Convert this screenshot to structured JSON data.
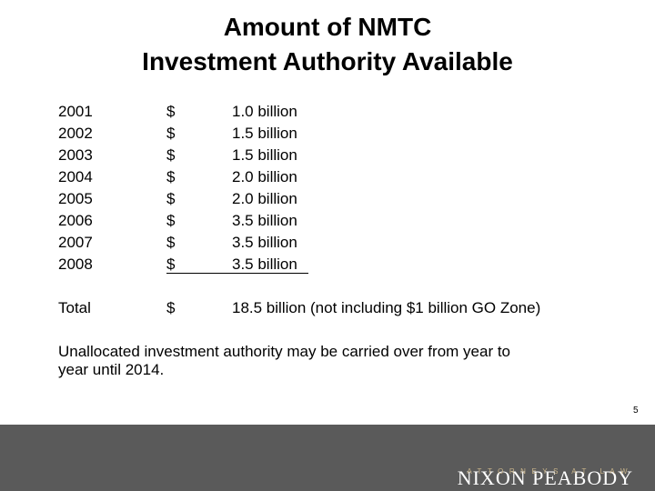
{
  "title": {
    "lines": [
      "Amount of NMTC",
      "Investment Authority Available"
    ]
  },
  "table": {
    "rows": [
      [
        "2001",
        "$",
        "1.0 billion"
      ],
      [
        "2002",
        "$",
        "1.5 billion"
      ],
      [
        "2003",
        "$",
        "1.5 billion"
      ],
      [
        "2004",
        "$",
        "2.0 billion"
      ],
      [
        "2005",
        "$",
        "2.0 billion"
      ],
      [
        "2006",
        "$",
        "3.5 billion"
      ],
      [
        "2007",
        "$",
        "3.5 billion"
      ],
      [
        "2008",
        "$",
        "3.5 billion"
      ]
    ],
    "total": [
      "Total",
      "$",
      "18.5 billion (not including $1 billion GO Zone)"
    ]
  },
  "note": {
    "lines": [
      "Unallocated investment authority may be carried over from year to",
      "year until 2014."
    ]
  },
  "page_number": "5",
  "footer": {
    "brand": "NIXON PEABODY",
    "tagline": "ATTORNEYS AT LAW"
  }
}
